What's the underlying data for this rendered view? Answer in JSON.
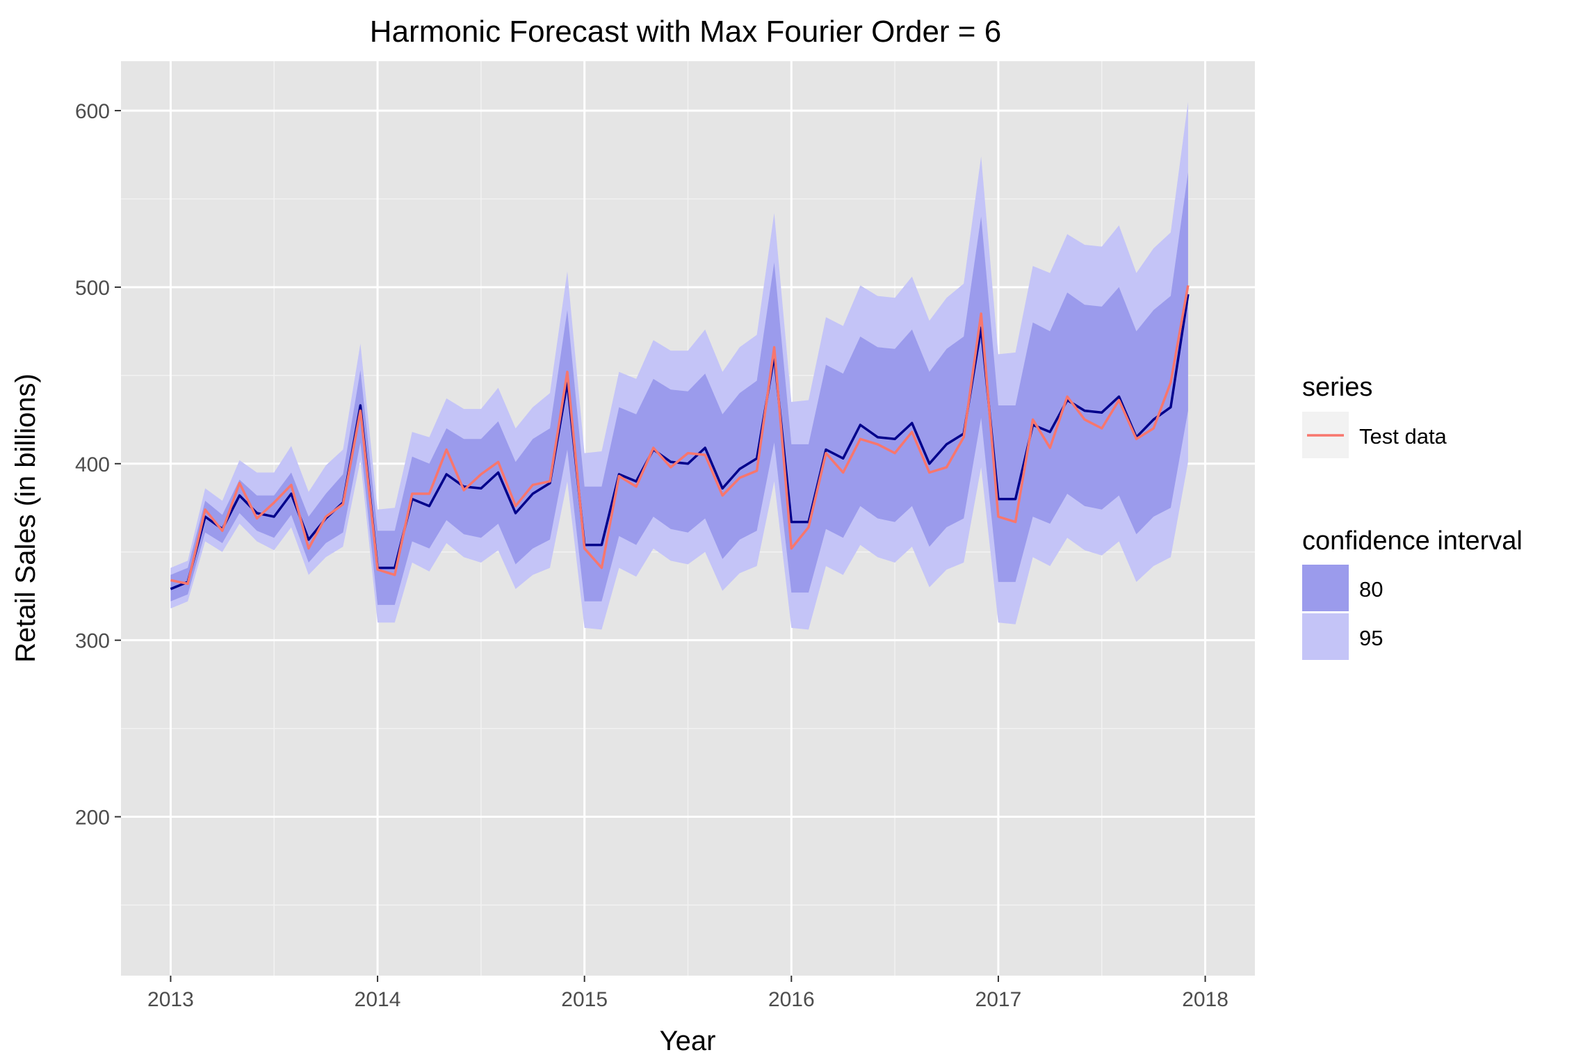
{
  "chart_data": {
    "type": "line",
    "title": "Harmonic Forecast with Max Fourier Order = 6",
    "xlabel": "Year",
    "ylabel": "Retail Sales (in billions)",
    "xlim": [
      2012.76,
      2018.24
    ],
    "ylim": [
      110,
      628
    ],
    "x_ticks": [
      2013,
      2014,
      2015,
      2016,
      2017,
      2018
    ],
    "x_tick_labels": [
      "2013",
      "2014",
      "2015",
      "2016",
      "2017",
      "2018"
    ],
    "y_ticks": [
      200,
      300,
      400,
      500,
      600
    ],
    "y_tick_labels": [
      "200",
      "300",
      "400",
      "500",
      "600"
    ],
    "grid": true,
    "background": "#e5e5e5",
    "x": [
      2013.0,
      2013.083,
      2013.167,
      2013.25,
      2013.333,
      2013.417,
      2013.5,
      2013.583,
      2013.667,
      2013.75,
      2013.833,
      2013.917,
      2014.0,
      2014.083,
      2014.167,
      2014.25,
      2014.333,
      2014.417,
      2014.5,
      2014.583,
      2014.667,
      2014.75,
      2014.833,
      2014.917,
      2015.0,
      2015.083,
      2015.167,
      2015.25,
      2015.333,
      2015.417,
      2015.5,
      2015.583,
      2015.667,
      2015.75,
      2015.833,
      2015.917,
      2016.0,
      2016.083,
      2016.167,
      2016.25,
      2016.333,
      2016.417,
      2016.5,
      2016.583,
      2016.667,
      2016.75,
      2016.833,
      2016.917,
      2017.0,
      2017.083,
      2017.167,
      2017.25,
      2017.333,
      2017.417,
      2017.5,
      2017.583,
      2017.667,
      2017.75,
      2017.833,
      2017.917
    ],
    "series": [
      {
        "role": "forecast",
        "color": "#00008b",
        "values": [
          329,
          333,
          370,
          363,
          382,
          372,
          370,
          383,
          357,
          369,
          378,
          433,
          341,
          341,
          380,
          376,
          394,
          387,
          386,
          395,
          372,
          383,
          389,
          446,
          354,
          354,
          394,
          390,
          408,
          401,
          400,
          409,
          386,
          397,
          403,
          461,
          367,
          367,
          408,
          403,
          422,
          415,
          414,
          423,
          400,
          411,
          417,
          477,
          380,
          380,
          422,
          418,
          436,
          430,
          429,
          438,
          415,
          425,
          432,
          496
        ]
      },
      {
        "name": "Test data",
        "color": "#f8766d",
        "values": [
          334,
          332,
          374,
          362,
          389,
          369,
          378,
          388,
          352,
          370,
          377,
          430,
          340,
          337,
          383,
          383,
          408,
          385,
          394,
          401,
          376,
          388,
          390,
          452,
          352,
          341,
          393,
          387,
          409,
          398,
          406,
          405,
          382,
          392,
          396,
          466,
          352,
          364,
          406,
          395,
          414,
          411,
          406,
          418,
          395,
          398,
          415,
          485,
          370,
          367,
          425,
          409,
          438,
          425,
          420,
          436,
          414,
          420,
          446,
          501
        ]
      }
    ],
    "intervals": [
      {
        "level": "80",
        "color": "#9b9bec",
        "lower": [
          322,
          326,
          361,
          355,
          372,
          362,
          358,
          371,
          344,
          355,
          361,
          412,
          320,
          320,
          356,
          352,
          368,
          360,
          358,
          366,
          343,
          352,
          357,
          408,
          322,
          322,
          359,
          354,
          370,
          363,
          361,
          369,
          346,
          357,
          362,
          412,
          327,
          327,
          363,
          358,
          376,
          369,
          367,
          376,
          353,
          364,
          369,
          426,
          333,
          333,
          370,
          366,
          383,
          376,
          374,
          382,
          360,
          370,
          375,
          430
        ],
        "upper": [
          337,
          341,
          379,
          371,
          391,
          382,
          382,
          395,
          370,
          383,
          394,
          453,
          362,
          362,
          404,
          400,
          420,
          414,
          414,
          424,
          401,
          414,
          420,
          487,
          387,
          387,
          432,
          428,
          448,
          442,
          441,
          451,
          428,
          440,
          447,
          514,
          411,
          411,
          456,
          451,
          472,
          466,
          465,
          476,
          452,
          465,
          472,
          540,
          433,
          433,
          480,
          475,
          497,
          490,
          489,
          500,
          475,
          487,
          495,
          565
        ]
      },
      {
        "level": "95",
        "color": "#c4c4f7",
        "lower": [
          318,
          322,
          356,
          350,
          366,
          356,
          351,
          364,
          337,
          347,
          353,
          402,
          310,
          310,
          344,
          339,
          355,
          347,
          344,
          351,
          329,
          337,
          341,
          390,
          307,
          306,
          341,
          336,
          352,
          345,
          343,
          350,
          328,
          338,
          342,
          390,
          307,
          306,
          342,
          337,
          354,
          347,
          344,
          353,
          330,
          340,
          344,
          398,
          310,
          309,
          347,
          342,
          358,
          351,
          348,
          356,
          333,
          342,
          347,
          401
        ],
        "upper": [
          341,
          345,
          386,
          379,
          402,
          395,
          395,
          410,
          384,
          399,
          408,
          468,
          374,
          375,
          418,
          415,
          437,
          431,
          431,
          443,
          420,
          432,
          440,
          509,
          406,
          407,
          452,
          448,
          470,
          464,
          464,
          476,
          452,
          466,
          473,
          542,
          435,
          436,
          483,
          478,
          501,
          495,
          494,
          506,
          481,
          494,
          502,
          574,
          462,
          463,
          512,
          508,
          530,
          524,
          523,
          535,
          508,
          522,
          531,
          605
        ]
      }
    ],
    "legend": {
      "placement": "right",
      "series_title": "series",
      "series_items": [
        {
          "label": "Test data",
          "color": "#f8766d"
        }
      ],
      "ci_title": "confidence interval",
      "ci_items": [
        {
          "label": "80",
          "color": "#9b9bec"
        },
        {
          "label": "95",
          "color": "#c4c4f7"
        }
      ]
    }
  }
}
